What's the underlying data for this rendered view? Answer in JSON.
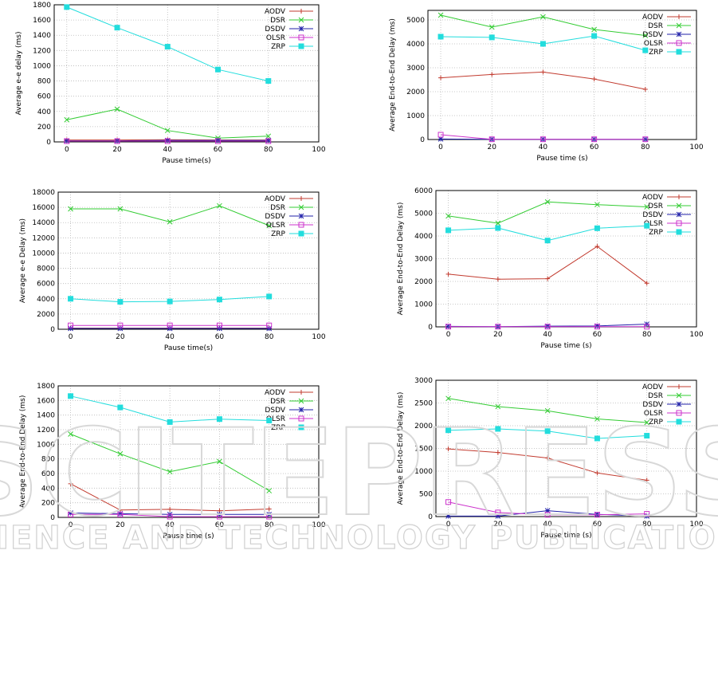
{
  "series_colors": {
    "AODV": "#c23b2f",
    "DSR": "#33cc33",
    "DSDV": "#2222aa",
    "OLSR": "#cc33cc",
    "ZRP": "#22dddd"
  },
  "watermark": {
    "big": "SCITEPRESS",
    "small": "SCIENCE AND TECHNOLOGY PUBLICATIONS"
  },
  "chart_data": [
    {
      "type": "line",
      "xlabel": "Pause time(s)",
      "ylabel": "Average e-e delay (ms)",
      "xlim": [
        -5,
        100
      ],
      "ylim": [
        0,
        1800
      ],
      "xticks": [
        0,
        20,
        40,
        60,
        80,
        100
      ],
      "yticks": [
        0,
        200,
        400,
        600,
        800,
        1000,
        1200,
        1400,
        1600,
        1800
      ],
      "legend": "top-right",
      "grid": true,
      "x": [
        0,
        20,
        40,
        60,
        80
      ],
      "series": [
        {
          "name": "AODV",
          "values": [
            25,
            25,
            28,
            25,
            25
          ]
        },
        {
          "name": "DSR",
          "values": [
            290,
            430,
            150,
            50,
            75
          ]
        },
        {
          "name": "DSDV",
          "values": [
            15,
            15,
            20,
            20,
            20
          ]
        },
        {
          "name": "OLSR",
          "values": [
            10,
            10,
            10,
            10,
            10
          ]
        },
        {
          "name": "ZRP",
          "values": [
            1770,
            1500,
            1250,
            950,
            800
          ]
        }
      ]
    },
    {
      "type": "line",
      "xlabel": "Pause time (s)",
      "ylabel": "Average End-to-End Delay (ms)",
      "xlim": [
        -5,
        100
      ],
      "ylim": [
        0,
        5400
      ],
      "xticks": [
        0,
        20,
        40,
        60,
        80,
        100
      ],
      "yticks": [
        0,
        1000,
        2000,
        3000,
        4000,
        5000
      ],
      "legend": "top-right",
      "grid": true,
      "x": [
        0,
        20,
        40,
        60,
        80
      ],
      "series": [
        {
          "name": "AODV",
          "values": [
            2580,
            2720,
            2820,
            2530,
            2100
          ]
        },
        {
          "name": "DSR",
          "values": [
            5200,
            4700,
            5130,
            4600,
            4350
          ]
        },
        {
          "name": "DSDV",
          "values": [
            20,
            10,
            10,
            10,
            10
          ]
        },
        {
          "name": "OLSR",
          "values": [
            200,
            10,
            10,
            10,
            10
          ]
        },
        {
          "name": "ZRP",
          "values": [
            4300,
            4270,
            4000,
            4330,
            3730
          ]
        }
      ]
    },
    {
      "type": "line",
      "xlabel": "Pause time(s)",
      "ylabel": "Average e-e Delay (ms)",
      "xlim": [
        -5,
        100
      ],
      "ylim": [
        0,
        18000
      ],
      "xticks": [
        0,
        20,
        40,
        60,
        80,
        100
      ],
      "yticks": [
        0,
        2000,
        4000,
        6000,
        8000,
        10000,
        12000,
        14000,
        16000,
        18000
      ],
      "legend": "top-right",
      "grid": true,
      "x": [
        0,
        20,
        40,
        60,
        80
      ],
      "series": [
        {
          "name": "AODV",
          "values": [
            150,
            150,
            150,
            150,
            150
          ]
        },
        {
          "name": "DSR",
          "values": [
            15800,
            15800,
            14100,
            16200,
            13600
          ]
        },
        {
          "name": "DSDV",
          "values": [
            100,
            100,
            100,
            100,
            100
          ]
        },
        {
          "name": "OLSR",
          "values": [
            500,
            500,
            500,
            500,
            500
          ]
        },
        {
          "name": "ZRP",
          "values": [
            4000,
            3600,
            3650,
            3900,
            4300
          ]
        }
      ]
    },
    {
      "type": "line",
      "xlabel": "Pause time (s)",
      "ylabel": "Average End-to-End Delay (ms)",
      "xlim": [
        -5,
        100
      ],
      "ylim": [
        0,
        6000
      ],
      "xticks": [
        0,
        20,
        40,
        60,
        80,
        100
      ],
      "yticks": [
        0,
        1000,
        2000,
        3000,
        4000,
        5000,
        6000
      ],
      "legend": "top-right",
      "grid": true,
      "x": [
        0,
        20,
        40,
        60,
        80
      ],
      "series": [
        {
          "name": "AODV",
          "values": [
            2320,
            2100,
            2120,
            3540,
            1920
          ]
        },
        {
          "name": "DSR",
          "values": [
            4880,
            4560,
            5500,
            5380,
            5280
          ]
        },
        {
          "name": "DSDV",
          "values": [
            20,
            10,
            30,
            40,
            120
          ]
        },
        {
          "name": "OLSR",
          "values": [
            10,
            10,
            10,
            10,
            10
          ]
        },
        {
          "name": "ZRP",
          "values": [
            4250,
            4350,
            3800,
            4340,
            4450
          ]
        }
      ]
    },
    {
      "type": "line",
      "xlabel": "Pause time (s)",
      "ylabel": "Average End-to-End Delay (ms)",
      "xlim": [
        -5,
        100
      ],
      "ylim": [
        0,
        1800
      ],
      "xticks": [
        0,
        20,
        40,
        60,
        80,
        100
      ],
      "yticks": [
        0,
        200,
        400,
        600,
        800,
        1000,
        1200,
        1400,
        1600,
        1800
      ],
      "legend": "top-right",
      "grid": true,
      "x": [
        0,
        20,
        40,
        60,
        80
      ],
      "series": [
        {
          "name": "AODV",
          "values": [
            460,
            100,
            110,
            90,
            115
          ]
        },
        {
          "name": "DSR",
          "values": [
            1140,
            870,
            625,
            765,
            365
          ]
        },
        {
          "name": "DSDV",
          "values": [
            60,
            50,
            40,
            40,
            40
          ]
        },
        {
          "name": "OLSR",
          "values": [
            40,
            40,
            10,
            10,
            10
          ]
        },
        {
          "name": "ZRP",
          "values": [
            1660,
            1505,
            1305,
            1345,
            1325
          ]
        }
      ]
    },
    {
      "type": "line",
      "xlabel": "Pause time (s)",
      "ylabel": "Average End-to-End Delay (ms)",
      "xlim": [
        -5,
        100
      ],
      "ylim": [
        0,
        3000
      ],
      "xticks": [
        0,
        20,
        40,
        60,
        80,
        100
      ],
      "yticks": [
        0,
        500,
        1000,
        1500,
        2000,
        2500,
        3000
      ],
      "legend": "top-right",
      "grid": true,
      "x": [
        0,
        20,
        40,
        60,
        80
      ],
      "series": [
        {
          "name": "AODV",
          "values": [
            1490,
            1410,
            1290,
            960,
            800
          ]
        },
        {
          "name": "DSR",
          "values": [
            2600,
            2420,
            2330,
            2150,
            2070
          ]
        },
        {
          "name": "DSDV",
          "values": [
            10,
            10,
            130,
            50,
            10
          ]
        },
        {
          "name": "OLSR",
          "values": [
            320,
            90,
            40,
            40,
            60
          ]
        },
        {
          "name": "ZRP",
          "values": [
            1900,
            1930,
            1880,
            1720,
            1780
          ]
        }
      ]
    }
  ]
}
